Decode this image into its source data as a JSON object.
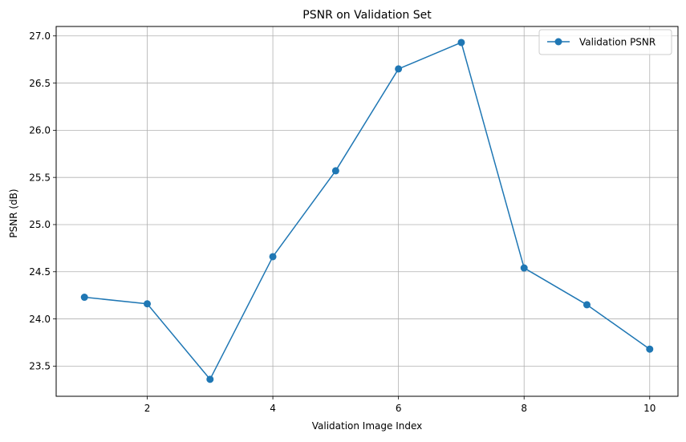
{
  "chart_data": {
    "type": "line",
    "title": "PSNR on Validation Set",
    "xlabel": "Validation Image Index",
    "ylabel": "PSNR (dB)",
    "xlim": [
      0.55,
      10.45
    ],
    "ylim": [
      23.18,
      27.1
    ],
    "xticks": [
      2,
      4,
      6,
      8,
      10
    ],
    "yticks": [
      23.5,
      24.0,
      24.5,
      25.0,
      25.5,
      26.0,
      26.5,
      27.0
    ],
    "xtick_labels": [
      "2",
      "4",
      "6",
      "8",
      "10"
    ],
    "ytick_labels": [
      "23.5",
      "24.0",
      "24.5",
      "25.0",
      "25.5",
      "26.0",
      "26.5",
      "27.0"
    ],
    "grid": true,
    "legend_position": "top-right",
    "series": [
      {
        "name": "Validation PSNR",
        "color": "#1f77b4",
        "marker": "circle",
        "x": [
          1,
          2,
          3,
          4,
          5,
          6,
          7,
          8,
          9,
          10
        ],
        "y": [
          24.23,
          24.16,
          23.36,
          24.66,
          25.57,
          26.65,
          26.93,
          24.54,
          24.15,
          23.68
        ]
      }
    ]
  }
}
